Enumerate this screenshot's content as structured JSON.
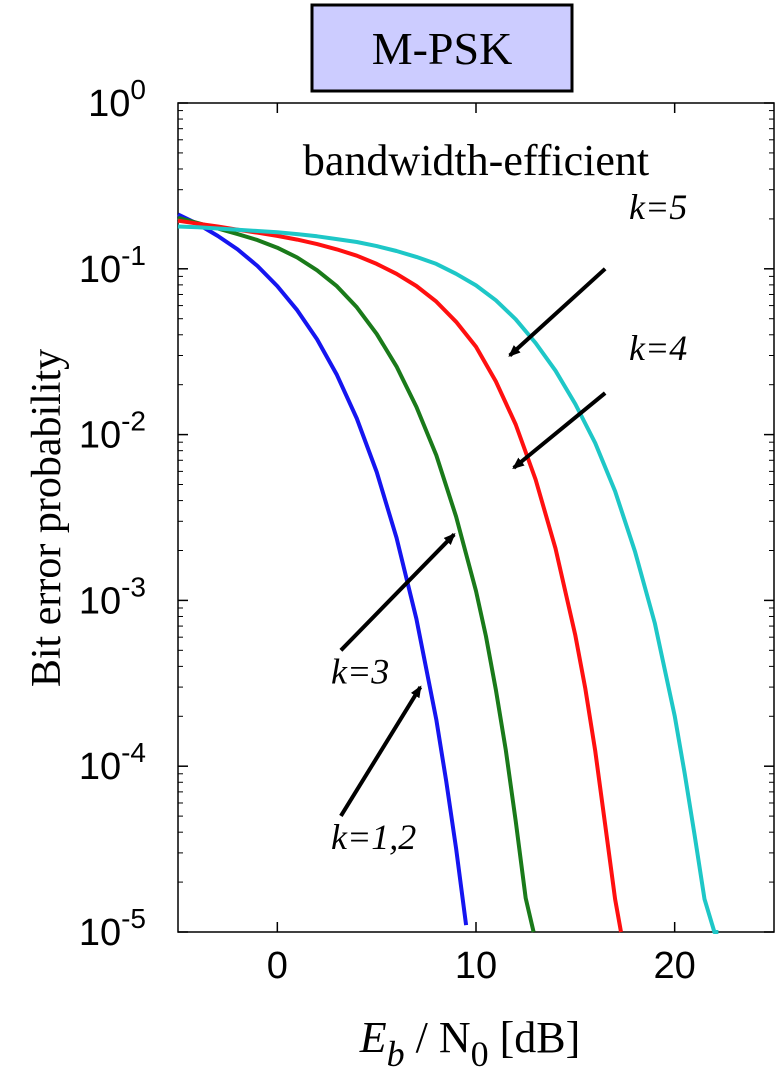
{
  "chart_data": {
    "type": "line",
    "title": "M-PSK",
    "annotation": "bandwidth-efficient",
    "xlabel": {
      "main": "E",
      "sub1": "b",
      "mid": " / N",
      "sub2": "0",
      "unit": " [dB]"
    },
    "ylabel": "Bit error probability",
    "xlim": [
      -5,
      25
    ],
    "ylim": [
      1e-05,
      1
    ],
    "yscale": "log",
    "xticks": [
      0,
      10,
      20
    ],
    "xtick_labels": [
      "0",
      "10",
      "20"
    ],
    "yticks": [
      {
        "value": 1,
        "exp": "0"
      },
      {
        "value": 0.1,
        "exp": "-1"
      },
      {
        "value": 0.01,
        "exp": "-2"
      },
      {
        "value": 0.001,
        "exp": "-3"
      },
      {
        "value": 0.0001,
        "exp": "-4"
      },
      {
        "value": 1e-05,
        "exp": "-5"
      }
    ],
    "ytick_base": "10",
    "grid": false,
    "series": [
      {
        "color": "#1515f0",
        "x": [
          -5,
          -4,
          -3,
          -2,
          -1,
          0,
          1,
          2,
          3,
          4,
          5,
          6,
          7,
          8,
          8.5,
          9,
          9.5
        ],
        "y": [
          0.213,
          0.186,
          0.158,
          0.131,
          0.104,
          0.0786,
          0.0563,
          0.0375,
          0.0229,
          0.0125,
          0.00595,
          0.00239,
          0.000773,
          0.000191,
          8.13e-05,
          3.19e-05,
          1.1e-05
        ]
      },
      {
        "color": "#1a7a1a",
        "x": [
          -5,
          -4,
          -3,
          -2,
          -1,
          0,
          1,
          2,
          3,
          4,
          5,
          6,
          7,
          8,
          9,
          10,
          10.5,
          11,
          11.5,
          12,
          12.5,
          12.9
        ],
        "y": [
          0.203,
          0.189,
          0.175,
          0.162,
          0.149,
          0.134,
          0.117,
          0.098,
          0.0785,
          0.0586,
          0.0405,
          0.0258,
          0.0147,
          0.0075,
          0.0032,
          0.00114,
          0.00061,
          0.000288,
          0.000125,
          4.67e-05,
          1.6e-05,
          1e-05
        ]
      },
      {
        "color": "#ff1010",
        "x": [
          -5,
          -4,
          -3,
          -2,
          -1,
          0,
          1,
          2,
          3,
          4,
          5,
          6,
          7,
          8,
          9,
          10,
          11,
          12,
          13,
          14,
          15,
          15.5,
          16,
          16.5,
          17,
          17.3
        ],
        "y": [
          0.195,
          0.187,
          0.18,
          0.172,
          0.165,
          0.158,
          0.15,
          0.141,
          0.131,
          0.12,
          0.107,
          0.0933,
          0.0788,
          0.0634,
          0.0479,
          0.0339,
          0.0209,
          0.0115,
          0.00536,
          0.00206,
          0.000617,
          0.000294,
          0.000124,
          4.47e-05,
          1.58e-05,
          1e-05
        ]
      },
      {
        "color": "#1ec7c7",
        "x": [
          -5,
          -4,
          -3,
          -2,
          -1,
          0,
          1,
          2,
          3,
          4,
          5,
          6,
          7,
          8,
          9,
          10,
          11,
          12,
          13,
          14,
          15,
          16,
          17,
          18,
          19,
          20,
          20.5,
          21,
          21.5,
          22,
          22.2
        ],
        "y": [
          0.18,
          0.178,
          0.175,
          0.172,
          0.169,
          0.166,
          0.162,
          0.157,
          0.151,
          0.145,
          0.137,
          0.128,
          0.118,
          0.107,
          0.0933,
          0.0794,
          0.0646,
          0.0496,
          0.0357,
          0.0243,
          0.0153,
          0.0089,
          0.00455,
          0.00198,
          0.00073,
          0.000201,
          9.11e-05,
          3.88e-05,
          1.58e-05,
          1e-05,
          1e-05
        ]
      }
    ],
    "annotations": [
      {
        "text": "k=5",
        "at": [
          17.7,
          0.2
        ],
        "arrow_from": [
          16.5,
          0.1
        ],
        "arrow_to": [
          11.7,
          0.03
        ]
      },
      {
        "text": "k=4",
        "at": [
          17.7,
          0.0282
        ],
        "arrow_from": [
          16.5,
          0.0178
        ],
        "arrow_to": [
          11.9,
          0.0063
        ]
      },
      {
        "text": "k=3",
        "at": [
          2.7,
          0.000316
        ],
        "arrow_from": [
          3.2,
          0.0005
        ],
        "arrow_to": [
          8.9,
          0.0025
        ]
      },
      {
        "text": "k=1,2",
        "at": [
          2.7,
          3.16e-05
        ],
        "arrow_from": [
          3.2,
          5.01e-05
        ],
        "arrow_to": [
          7.2,
          0.0003
        ]
      }
    ]
  }
}
